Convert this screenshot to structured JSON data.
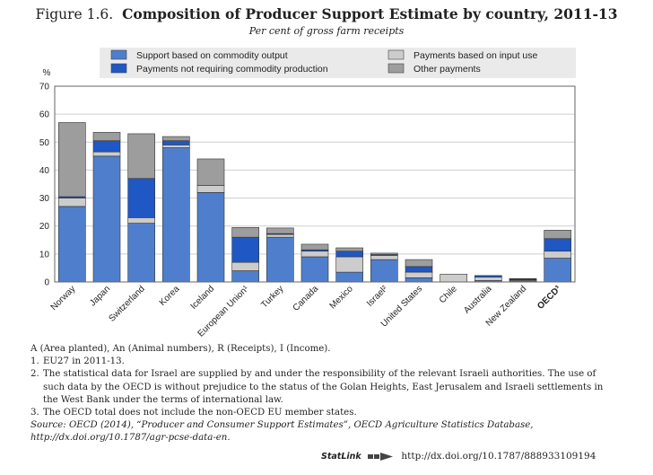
{
  "figure": {
    "label": "Figure 1.6.",
    "title": "Composition of Producer Support Estimate by country, 2011-13",
    "subtitle": "Per cent of gross farm receipts"
  },
  "colors": {
    "support_output": "#4f7fcc",
    "payments_input": "#cccccc",
    "payments_noncommodity": "#1f58c4",
    "other_payments": "#9d9d9d",
    "axis": "#555555",
    "grid": "#cfcfcf"
  },
  "chart_data": {
    "type": "bar",
    "stacked": true,
    "title": "Composition of Producer Support Estimate by country, 2011-13",
    "subtitle": "Per cent of gross farm receipts",
    "ylabel": "%",
    "ylim": [
      0,
      70
    ],
    "yticks": [
      0,
      10,
      20,
      30,
      40,
      50,
      60,
      70
    ],
    "grid": true,
    "legend_position": "top",
    "categories": [
      "Norway",
      "Japan",
      "Switzerland",
      "Korea",
      "Iceland",
      "European Union¹",
      "Turkey",
      "Canada",
      "Mexico",
      "Israel²",
      "United States",
      "Chile",
      "Australia",
      "New Zealand",
      "OECD³"
    ],
    "bold_categories": [
      "OECD³"
    ],
    "series": [
      {
        "name": "Support based on commodity output",
        "color_key": "support_output",
        "values": [
          27,
          45,
          21,
          48,
          32,
          4,
          16,
          9,
          3.5,
          8,
          1.5,
          0,
          0.5,
          0.4,
          8.5
        ]
      },
      {
        "name": "Payments based on input use",
        "color_key": "payments_input",
        "values": [
          3,
          1.5,
          2,
          1,
          2.5,
          3,
          1,
          2,
          5.5,
          1.5,
          2,
          2.8,
          1.2,
          0.3,
          2.5
        ]
      },
      {
        "name": "Payments not requiring commodity production",
        "color_key": "payments_noncommodity",
        "values": [
          0.5,
          4,
          14,
          1.5,
          0,
          9,
          0.3,
          0.5,
          2,
          0.3,
          2,
          0,
          0.6,
          0.3,
          4.5
        ]
      },
      {
        "name": "Other payments",
        "color_key": "other_payments",
        "values": [
          26.5,
          3,
          16,
          1.5,
          9.5,
          3.5,
          2,
          2,
          1.2,
          0.5,
          2.5,
          0,
          0,
          0.2,
          3
        ]
      }
    ]
  },
  "legend": [
    {
      "label": "Support based on commodity output",
      "color_key": "support_output"
    },
    {
      "label": "Payments not requiring commodity production",
      "color_key": "payments_noncommodity"
    },
    {
      "label": "Payments based on input use",
      "color_key": "payments_input"
    },
    {
      "label": "Other payments",
      "color_key": "other_payments"
    }
  ],
  "notes": {
    "abbrev": "A (Area planted), An (Animal numbers), R (Receipts), I (Income).",
    "items": [
      {
        "num": "1.",
        "text": "EU27 in 2011-13."
      },
      {
        "num": "2.",
        "text": "The statistical data for Israel are supplied by and under the responsibility of the relevant Israeli authorities. The use of such data by the OECD is without prejudice to the status of the Golan Heights, East Jerusalem and Israeli settlements in the West Bank under the terms of international law."
      },
      {
        "num": "3.",
        "text": "The OECD total does not include the non-OECD EU member states."
      }
    ],
    "source": "Source: OECD (2014), “Producer and Consumer Support Estimates”, OECD Agriculture Statistics Database, http://dx.doi.org/10.1787/agr-pcse-data-en."
  },
  "statlink": {
    "brand": "StatLink",
    "url": "http://dx.doi.org/10.1787/888933109194"
  }
}
